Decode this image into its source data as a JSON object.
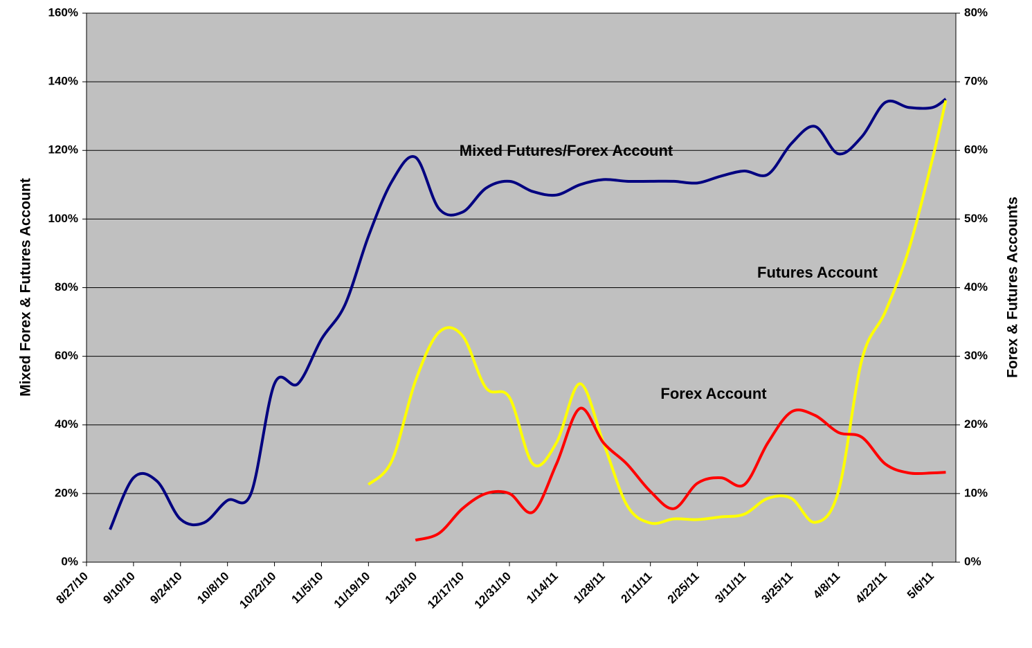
{
  "chart_data": {
    "type": "line",
    "y_label": "Mixed Forex & Futures Account",
    "y2_label": "Forex & Futures Accounts",
    "annotations": [
      "Mixed Futures/Forex Account",
      "Futures Account",
      "Forex Account"
    ],
    "x": [
      "8/27/10",
      "9/3/10",
      "9/10/10",
      "9/17/10",
      "9/24/10",
      "10/1/10",
      "10/8/10",
      "10/15/10",
      "10/22/10",
      "10/29/10",
      "11/5/10",
      "11/12/10",
      "11/19/10",
      "11/26/10",
      "12/3/10",
      "12/10/10",
      "12/17/10",
      "12/24/10",
      "12/31/10",
      "1/7/11",
      "1/14/11",
      "1/21/11",
      "1/28/11",
      "2/4/11",
      "2/11/11",
      "2/18/11",
      "2/25/11",
      "3/4/11",
      "3/11/11",
      "3/18/11",
      "3/25/11",
      "4/1/11",
      "4/8/11",
      "4/15/11",
      "4/22/11",
      "4/29/11",
      "5/6/11",
      "5/10/11"
    ],
    "xlim": [
      "8/27/10",
      "5/13/11"
    ],
    "xticks": [
      "8/27/10",
      "9/10/10",
      "9/24/10",
      "10/8/10",
      "10/22/10",
      "11/5/10",
      "11/19/10",
      "12/3/10",
      "12/17/10",
      "12/31/10",
      "1/14/11",
      "1/28/11",
      "2/11/11",
      "2/25/11",
      "3/11/11",
      "3/25/11",
      "4/8/11",
      "4/22/11",
      "5/6/11"
    ],
    "ylim": [
      0,
      160
    ],
    "yticks": [
      {
        "value": 0,
        "label": "0%"
      },
      {
        "value": 20,
        "label": "20%"
      },
      {
        "value": 40,
        "label": "40%"
      },
      {
        "value": 60,
        "label": "60%"
      },
      {
        "value": 80,
        "label": "80%"
      },
      {
        "value": 100,
        "label": "100%"
      },
      {
        "value": 120,
        "label": "120%"
      },
      {
        "value": 140,
        "label": "140%"
      },
      {
        "value": 160,
        "label": "160%"
      }
    ],
    "y2lim": [
      0,
      80
    ],
    "y2ticks": [
      {
        "value": 0,
        "label": "0%"
      },
      {
        "value": 10,
        "label": "10%"
      },
      {
        "value": 20,
        "label": "20%"
      },
      {
        "value": 30,
        "label": "30%"
      },
      {
        "value": 40,
        "label": "40%"
      },
      {
        "value": 50,
        "label": "50%"
      },
      {
        "value": 60,
        "label": "60%"
      },
      {
        "value": 70,
        "label": "70%"
      },
      {
        "value": 80,
        "label": "80%"
      }
    ],
    "grid": true,
    "background": "#c0c0c0",
    "series": [
      {
        "color": "#000080",
        "axis": "y",
        "values": [
          null,
          9.5,
          24.6,
          23.6,
          12.5,
          11.5,
          18,
          20,
          52,
          52,
          65,
          75,
          95,
          111,
          118,
          103,
          102,
          109,
          111,
          108,
          107,
          110,
          111.5,
          111,
          111,
          111,
          110.5,
          112.5,
          114,
          113,
          122,
          127,
          119,
          124,
          134,
          132.5,
          132.5,
          135
        ]
      },
      {
        "color": "#ffff00",
        "axis": "y2",
        "values": [
          null,
          null,
          null,
          null,
          null,
          null,
          null,
          null,
          null,
          null,
          null,
          null,
          11.3,
          14.8,
          26.4,
          33.5,
          33,
          25.4,
          24,
          14.3,
          17.4,
          26,
          17.4,
          8.3,
          5.7,
          6.3,
          6.2,
          6.6,
          7,
          9.3,
          9.3,
          5.8,
          10.3,
          29.5,
          36.5,
          45.6,
          58.7,
          67.3
        ]
      },
      {
        "color": "#ff0000",
        "axis": "y2",
        "values": [
          null,
          null,
          null,
          null,
          null,
          null,
          null,
          null,
          null,
          null,
          null,
          null,
          null,
          null,
          3.2,
          4.2,
          7.8,
          10,
          10,
          7.3,
          14.3,
          22.4,
          17.4,
          14.3,
          10.3,
          7.8,
          11.5,
          12.3,
          11.3,
          17.4,
          21.9,
          21.4,
          18.9,
          18.2,
          14.3,
          13,
          13,
          13.1
        ]
      }
    ]
  }
}
